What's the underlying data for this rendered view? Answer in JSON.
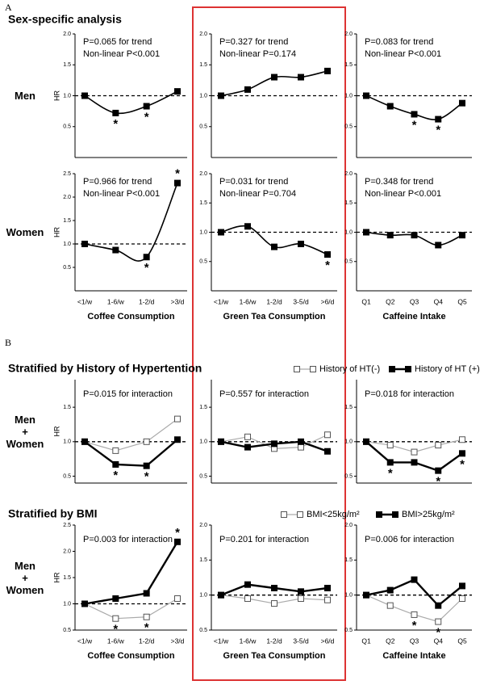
{
  "sections": {
    "a_label": "A",
    "a_title": "Sex-specific analysis",
    "b_label": "B",
    "b_title1": "Stratified by History of Hypertention",
    "b_title2": "Stratified by BMI"
  },
  "chart_data": [
    {
      "type": "line",
      "smooth": true,
      "row_label": "Men",
      "ylabel": "HR",
      "categories": [
        null,
        null,
        null,
        null
      ],
      "series": [
        {
          "color": "#000",
          "marker": "filled",
          "values": [
            1.0,
            0.72,
            0.83,
            1.07
          ],
          "value_labels": [
            null,
            "*",
            "*",
            null
          ]
        }
      ],
      "ylim": [
        0,
        2
      ],
      "yticks": [
        {
          "value": 0.5,
          "label": "0.5"
        },
        {
          "value": 1,
          "label": "1.0"
        },
        {
          "value": 1.5,
          "label": "1.5"
        },
        {
          "value": 2,
          "label": "2.0"
        }
      ],
      "hline": 1,
      "text": [
        "P=0.065 for trend",
        "Non-linear P<0.001"
      ]
    },
    {
      "type": "line",
      "smooth": true,
      "categories": [
        null,
        null,
        null,
        null,
        null
      ],
      "series": [
        {
          "color": "#000",
          "marker": "filled",
          "values": [
            1.0,
            1.1,
            1.3,
            1.3,
            1.4
          ]
        }
      ],
      "ylim": [
        0,
        2
      ],
      "yticks": [
        {
          "value": 0.5,
          "label": "0.5"
        },
        {
          "value": 1,
          "label": "1.0"
        },
        {
          "value": 1.5,
          "label": "1.5"
        },
        {
          "value": 2,
          "label": "2.0"
        }
      ],
      "hline": 1,
      "text": [
        "P=0.327 for trend",
        "Non-linear P=0.174"
      ]
    },
    {
      "type": "line",
      "smooth": true,
      "categories": [
        null,
        null,
        null,
        null,
        null
      ],
      "series": [
        {
          "color": "#000",
          "marker": "filled",
          "values": [
            1.0,
            0.83,
            0.7,
            0.62,
            0.88
          ],
          "value_labels": [
            null,
            null,
            "*",
            "*",
            null
          ]
        }
      ],
      "ylim": [
        0,
        2
      ],
      "yticks": [
        {
          "value": 0.5,
          "label": "0.5"
        },
        {
          "value": 1,
          "label": "1.0"
        },
        {
          "value": 1.5,
          "label": "1.5"
        },
        {
          "value": 2,
          "label": "2.0"
        }
      ],
      "hline": 1,
      "text": [
        "P=0.083 for trend",
        "Non-linear P<0.001"
      ]
    },
    {
      "type": "line",
      "smooth": true,
      "row_label": "Women",
      "ylabel": "HR",
      "xlabel": "Coffee Consumption",
      "categories": [
        "<1/w",
        "1-6/w",
        "1-2/d",
        ">3/d"
      ],
      "series": [
        {
          "color": "#000",
          "marker": "filled",
          "values": [
            1.0,
            0.87,
            0.72,
            2.3
          ],
          "value_labels": [
            null,
            null,
            "*",
            "*"
          ]
        }
      ],
      "ylim": [
        0,
        2.5
      ],
      "yticks": [
        {
          "value": 0.5,
          "label": "0.5"
        },
        {
          "value": 1,
          "label": "1.0"
        },
        {
          "value": 1.5,
          "label": "1.5"
        },
        {
          "value": 2,
          "label": "2.0"
        },
        {
          "value": 2.5,
          "label": "2.5"
        }
      ],
      "hline": 1,
      "text": [
        "P=0.966 for trend",
        "Non-linear P<0.001"
      ]
    },
    {
      "type": "line",
      "smooth": true,
      "xlabel": "Green Tea Consumption",
      "categories": [
        "<1/w",
        "1-6/w",
        "1-2/d",
        "3-5/d",
        ">6/d"
      ],
      "series": [
        {
          "color": "#000",
          "marker": "filled",
          "values": [
            1.0,
            1.1,
            0.75,
            0.8,
            0.62
          ],
          "value_labels": [
            null,
            null,
            null,
            null,
            "*"
          ]
        }
      ],
      "ylim": [
        0,
        2
      ],
      "yticks": [
        {
          "value": 0.5,
          "label": "0.5"
        },
        {
          "value": 1,
          "label": "1.0"
        },
        {
          "value": 1.5,
          "label": "1.5"
        },
        {
          "value": 2,
          "label": "2.0"
        }
      ],
      "hline": 1,
      "text": [
        "P=0.031 for trend",
        "Non-linear P=0.704"
      ]
    },
    {
      "type": "line",
      "smooth": true,
      "xlabel": "Caffeine Intake",
      "categories": [
        "Q1",
        "Q2",
        "Q3",
        "Q4",
        "Q5"
      ],
      "series": [
        {
          "color": "#000",
          "marker": "filled",
          "values": [
            1.0,
            0.95,
            0.95,
            0.78,
            0.95
          ]
        }
      ],
      "ylim": [
        0,
        2
      ],
      "yticks": [
        {
          "value": 0.5,
          "label": "0.5"
        },
        {
          "value": 1,
          "label": "1.0"
        },
        {
          "value": 1.5,
          "label": "1.5"
        },
        {
          "value": 2,
          "label": "2.0"
        }
      ],
      "hline": 1,
      "text": [
        "P=0.348 for trend",
        "Non-linear P<0.001"
      ]
    },
    {
      "type": "line",
      "row_label": "Men\n+\nWomen",
      "ylabel": "HR",
      "categories": [
        null,
        null,
        null,
        null
      ],
      "series": [
        {
          "color": "#aaa",
          "marker": "open",
          "values": [
            1.0,
            0.87,
            1.0,
            1.33
          ]
        },
        {
          "color": "#000",
          "marker": "filled",
          "values": [
            1.0,
            0.67,
            0.65,
            1.03
          ],
          "value_labels": [
            null,
            "*",
            "*",
            null
          ]
        }
      ],
      "ylim": [
        0.4,
        1.9
      ],
      "yticks": [
        {
          "value": 0.5,
          "label": "0.5"
        },
        {
          "value": 1,
          "label": "1.0"
        },
        {
          "value": 1.5,
          "label": "1.5"
        }
      ],
      "hline": 1,
      "text": [
        "P=0.015 for interaction"
      ]
    },
    {
      "type": "line",
      "categories": [
        null,
        null,
        null,
        null,
        null
      ],
      "series": [
        {
          "color": "#aaa",
          "marker": "open",
          "values": [
            1.0,
            1.07,
            0.9,
            0.92,
            1.1
          ]
        },
        {
          "color": "#000",
          "marker": "filled",
          "values": [
            1.0,
            0.92,
            0.97,
            1.0,
            0.86
          ]
        }
      ],
      "ylim": [
        0.4,
        1.9
      ],
      "yticks": [
        {
          "value": 0.5,
          "label": "0.5"
        },
        {
          "value": 1,
          "label": "1.0"
        },
        {
          "value": 1.5,
          "label": "1.5"
        }
      ],
      "hline": 1,
      "text": [
        "P=0.557 for interaction"
      ]
    },
    {
      "type": "line",
      "legend": "above",
      "categories": [
        null,
        null,
        null,
        null,
        null
      ],
      "series": [
        {
          "name": "History of HT(-)",
          "color": "#aaa",
          "marker": "open",
          "values": [
            1.0,
            0.95,
            0.85,
            0.95,
            1.03
          ]
        },
        {
          "name": "History of HT (+)",
          "color": "#000",
          "marker": "filled",
          "values": [
            1.0,
            0.7,
            0.7,
            0.58,
            0.83
          ],
          "value_labels": [
            null,
            "*",
            null,
            "*",
            "*"
          ]
        }
      ],
      "ylim": [
        0.4,
        1.9
      ],
      "yticks": [
        {
          "value": 0.5,
          "label": "0.5"
        },
        {
          "value": 1,
          "label": "1.0"
        },
        {
          "value": 1.5,
          "label": "1.5"
        }
      ],
      "hline": 1,
      "text": [
        "P=0.018 for interaction"
      ]
    },
    {
      "type": "line",
      "row_label": "Men\n+\nWomen",
      "ylabel": "HR",
      "xlabel": "Coffee Consumption",
      "categories": [
        "<1/w",
        "1-6/w",
        "1-2/d",
        ">3/d"
      ],
      "series": [
        {
          "color": "#aaa",
          "marker": "open",
          "values": [
            1.0,
            0.72,
            0.75,
            1.1
          ],
          "value_labels": [
            null,
            "*",
            "*",
            null
          ]
        },
        {
          "color": "#000",
          "marker": "filled",
          "values": [
            1.0,
            1.1,
            1.2,
            2.18
          ],
          "value_labels": [
            null,
            null,
            null,
            "*"
          ]
        }
      ],
      "ylim": [
        0.5,
        2.5
      ],
      "yticks": [
        {
          "value": 0.5,
          "label": "0.5"
        },
        {
          "value": 1,
          "label": "1.0"
        },
        {
          "value": 1.5,
          "label": "1.5"
        },
        {
          "value": 2,
          "label": "2.0"
        },
        {
          "value": 2.5,
          "label": "2.5"
        }
      ],
      "hline": 1,
      "text": [
        "P=0.003 for interaction"
      ]
    },
    {
      "type": "line",
      "xlabel": "Green Tea Consumption",
      "categories": [
        "<1/w",
        "1-6/w",
        "1-2/d",
        "3-5/d",
        ">6/d"
      ],
      "series": [
        {
          "color": "#aaa",
          "marker": "open",
          "values": [
            1.0,
            0.95,
            0.88,
            0.95,
            0.93
          ]
        },
        {
          "color": "#000",
          "marker": "filled",
          "values": [
            1.0,
            1.15,
            1.1,
            1.05,
            1.1
          ]
        }
      ],
      "ylim": [
        0.5,
        2.0
      ],
      "yticks": [
        {
          "value": 0.5,
          "label": "0.5"
        },
        {
          "value": 1,
          "label": "1.0"
        },
        {
          "value": 1.5,
          "label": "1.5"
        },
        {
          "value": 2,
          "label": "2.0"
        }
      ],
      "hline": 1,
      "text": [
        "P=0.201 for interaction"
      ]
    },
    {
      "type": "line",
      "legend": "above",
      "xlabel": "Caffeine Intake",
      "categories": [
        "Q1",
        "Q2",
        "Q3",
        "Q4",
        "Q5"
      ],
      "series": [
        {
          "name": "BMI<25kg/m²",
          "color": "#aaa",
          "marker": "open",
          "values": [
            1.0,
            0.85,
            0.72,
            0.62,
            0.95
          ],
          "value_labels": [
            null,
            null,
            "*",
            "*",
            null
          ]
        },
        {
          "name": "BMI>25kg/m²",
          "color": "#000",
          "marker": "filled",
          "values": [
            1.0,
            1.07,
            1.22,
            0.85,
            1.13
          ]
        }
      ],
      "ylim": [
        0.5,
        2.0
      ],
      "yticks": [
        {
          "value": 0.5,
          "label": "0.5"
        },
        {
          "value": 1,
          "label": "1.0"
        },
        {
          "value": 1.5,
          "label": "1.5"
        },
        {
          "value": 2,
          "label": "2.0"
        }
      ],
      "hline": 1,
      "text": [
        "P=0.006 for interaction"
      ]
    }
  ]
}
